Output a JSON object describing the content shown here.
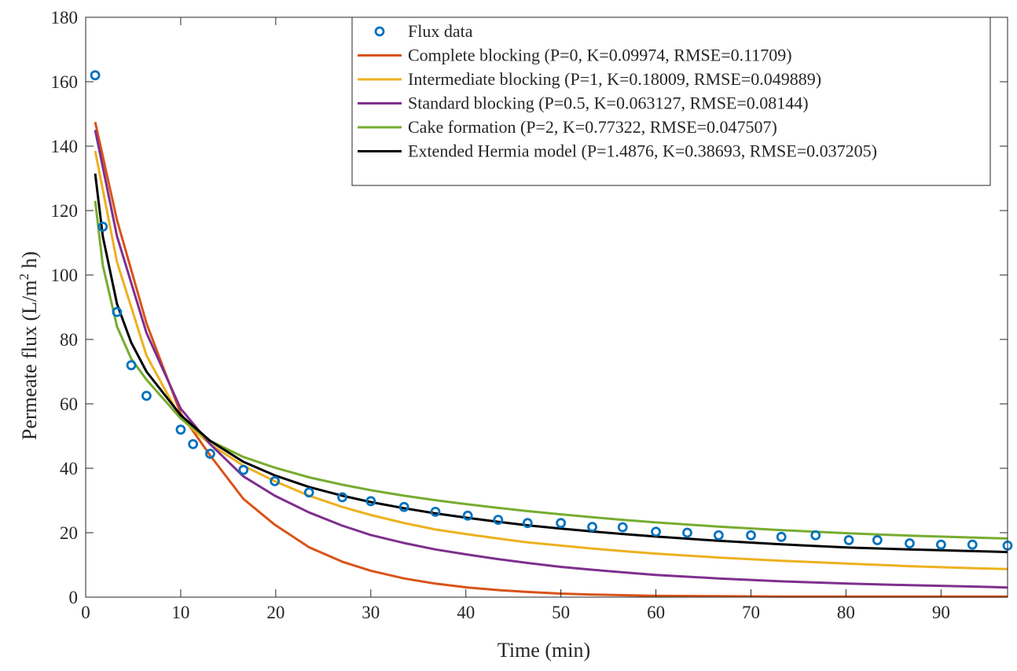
{
  "chart_data": {
    "type": "line",
    "xlabel": "Time (min)",
    "ylabel_main": "Permeate flux (L/m",
    "ylabel_sup": "2",
    "ylabel_tail": " h)",
    "xlim": [
      0,
      97
    ],
    "ylim": [
      0,
      180
    ],
    "xticks": [
      0,
      10,
      20,
      30,
      40,
      50,
      60,
      70,
      80,
      90
    ],
    "yticks": [
      0,
      20,
      40,
      60,
      80,
      100,
      120,
      140,
      160,
      180
    ],
    "grid": false,
    "legend_position": "top-right",
    "data_series": {
      "name": "Flux data",
      "marker": "circle",
      "color": "#0072BD",
      "x": [
        1,
        1.8,
        3.3,
        4.8,
        6.4,
        10,
        11.3,
        13.1,
        16.6,
        19.9,
        23.5,
        27,
        30,
        33.5,
        36.8,
        40.2,
        43.4,
        46.5,
        50,
        53.3,
        56.5,
        60,
        63.3,
        66.6,
        70,
        73.2,
        76.8,
        80.3,
        83.3,
        86.7,
        90,
        93.3,
        97
      ],
      "y": [
        162,
        115,
        88.5,
        72,
        62.5,
        52,
        47.5,
        44.5,
        39.5,
        36,
        32.5,
        31,
        29.8,
        28,
        26.5,
        25.3,
        24,
        23,
        23,
        21.8,
        21.7,
        20.3,
        20,
        19.2,
        19.2,
        18.7,
        19.2,
        17.7,
        17.7,
        16.7,
        16.3,
        16.3,
        16
      ]
    },
    "series": [
      {
        "name": "Complete blocking (P=0, K=0.09974, RMSE=0.11709)",
        "color": "#D95319",
        "x": [
          1,
          3.3,
          6.4,
          10,
          13.1,
          16.6,
          19.9,
          23.5,
          27,
          30,
          33.5,
          36.8,
          40.2,
          43.4,
          46.5,
          50,
          53.3,
          56.5,
          60,
          66.6,
          73.2,
          80.3,
          86.7,
          93.3,
          97
        ],
        "y": [
          147.5,
          117,
          85,
          57,
          44,
          30.5,
          22.5,
          15.5,
          11,
          8.2,
          5.8,
          4.2,
          3,
          2.2,
          1.6,
          1.1,
          0.8,
          0.6,
          0.4,
          0.3,
          0.2,
          0.2,
          0.2,
          0.2,
          0.2
        ]
      },
      {
        "name": "Intermediate blocking (P=1, K=0.18009, RMSE=0.049889)",
        "color": "#EDB120",
        "x": [
          1,
          3.3,
          6.4,
          10,
          13.1,
          16.6,
          19.9,
          23.5,
          27,
          30,
          33.5,
          36.8,
          40.2,
          43.4,
          46.5,
          50,
          53.3,
          56.5,
          60,
          66.6,
          73.2,
          80.3,
          86.7,
          93.3,
          97
        ],
        "y": [
          138.5,
          104,
          75,
          55.5,
          47.5,
          40.8,
          36,
          31.5,
          28,
          25.5,
          23,
          21,
          19.5,
          18.2,
          17,
          16,
          15.1,
          14.3,
          13.5,
          12.3,
          11.3,
          10.4,
          9.6,
          9,
          8.7
        ]
      },
      {
        "name": "Standard blocking (P=0.5, K=0.063127, RMSE=0.08144)",
        "color": "#7E2F8E",
        "x": [
          1,
          3.3,
          6.4,
          10,
          13.1,
          16.6,
          19.9,
          23.5,
          27,
          30,
          33.5,
          36.8,
          40.2,
          43.4,
          46.5,
          50,
          53.3,
          56.5,
          60,
          66.6,
          73.2,
          80.3,
          86.7,
          93.3,
          97
        ],
        "y": [
          145,
          112,
          82,
          58.5,
          47.5,
          37.5,
          31.5,
          26.3,
          22.2,
          19.3,
          16.8,
          14.8,
          13.2,
          11.8,
          10.6,
          9.4,
          8.5,
          7.7,
          6.9,
          5.8,
          4.9,
          4.2,
          3.7,
          3.3,
          3
        ]
      },
      {
        "name": "Cake formation (P=2, K=0.77322, RMSE=0.047507)",
        "color": "#77AC30",
        "x": [
          1,
          1.8,
          3.3,
          4.8,
          6.4,
          10,
          13.1,
          16.6,
          19.9,
          23.5,
          27,
          30,
          33.5,
          36.8,
          40.2,
          43.4,
          46.5,
          50,
          53.3,
          56.5,
          60,
          66.6,
          73.2,
          80.3,
          86.7,
          93.3,
          97
        ],
        "y": [
          123,
          103,
          84,
          74,
          67.5,
          55.5,
          48.5,
          43.5,
          40.2,
          37.2,
          34.9,
          33.2,
          31.5,
          30.1,
          28.8,
          27.7,
          26.7,
          25.7,
          24.8,
          24,
          23.2,
          21.9,
          20.8,
          19.8,
          19.1,
          18.5,
          18.2
        ]
      },
      {
        "name": "Extended Hermia model (P=1.4876, K=0.38693, RMSE=0.037205)",
        "color": "#000000",
        "x": [
          1,
          1.8,
          3.3,
          4.8,
          6.4,
          10,
          13.1,
          16.6,
          19.9,
          23.5,
          27,
          30,
          33.5,
          36.8,
          40.2,
          43.4,
          46.5,
          50,
          53.3,
          56.5,
          60,
          66.6,
          73.2,
          80.3,
          86.7,
          93.3,
          97
        ],
        "y": [
          131.5,
          112,
          91,
          79,
          70,
          56.5,
          48.5,
          42,
          37.8,
          34.2,
          31.5,
          29.5,
          27.6,
          26,
          24.6,
          23.4,
          22.3,
          21.3,
          20.4,
          19.6,
          18.8,
          17.5,
          16.4,
          15.4,
          14.8,
          14.3,
          14
        ]
      }
    ]
  }
}
